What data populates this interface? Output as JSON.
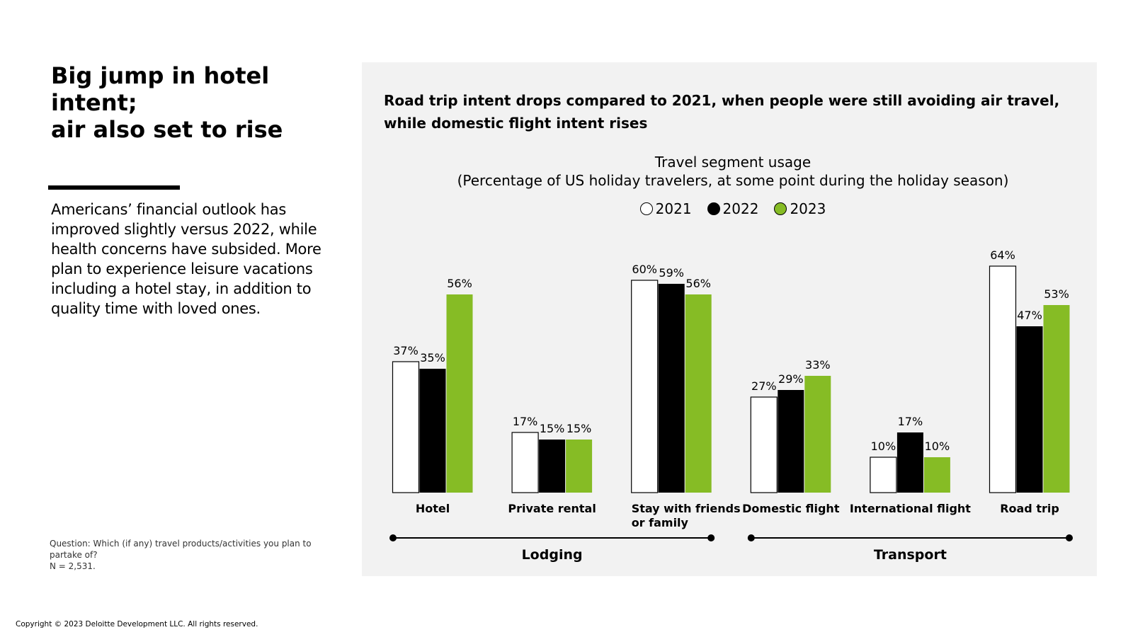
{
  "slide": {
    "title_line1": "Big jump in hotel intent;",
    "title_line2": "air also set to rise",
    "body": "Americans’ financial outlook has improved slightly versus 2022, while health concerns have subsided. More plan to experience leisure vacations including a hotel stay, in addition to quality time with loved ones.",
    "note_question": "Question: Which (if any) travel products/activities you plan to partake of?",
    "note_n": "N = 2,531.",
    "copyright": "Copyright © 2023 Deloitte Development LLC. All rights reserved."
  },
  "panel": {
    "heading_line1": "Road trip intent drops compared to 2021, when people were still avoiding air travel,",
    "heading_line2": "while domestic flight intent rises"
  },
  "colors": {
    "series_2021": "#ffffff",
    "series_2022": "#000000",
    "series_2023": "#86bc25",
    "panel_bg": "#f2f2f2"
  },
  "chart_data": {
    "type": "bar",
    "title": "Travel segment usage",
    "subtitle": "(Percentage of US holiday travelers, at some point during the holiday season)",
    "categories": [
      "Hotel",
      "Private rental",
      "Stay with friends or family",
      "Domestic flight",
      "International flight",
      "Road trip"
    ],
    "category_lines": [
      [
        "Hotel"
      ],
      [
        "Private rental"
      ],
      [
        "Stay with friends",
        "or family"
      ],
      [
        "Domestic flight"
      ],
      [
        "International flight"
      ],
      [
        "Road trip"
      ]
    ],
    "series": [
      {
        "name": "2021",
        "values": [
          37,
          17,
          60,
          27,
          10,
          64
        ],
        "labels": [
          "37%",
          "17%",
          "60%",
          "27%",
          "10%",
          "64%"
        ]
      },
      {
        "name": "2022",
        "values": [
          35,
          15,
          59,
          29,
          17,
          47
        ],
        "labels": [
          "35%",
          "15%",
          "59%",
          "29%",
          "17%",
          "47%"
        ]
      },
      {
        "name": "2023",
        "values": [
          56,
          15,
          56,
          33,
          10,
          53
        ],
        "labels": [
          "56%",
          "15%",
          "56%",
          "33%",
          "10%",
          "53%"
        ]
      }
    ],
    "groups": [
      {
        "label": "Lodging",
        "categories": [
          "Hotel",
          "Private rental",
          "Stay with friends or family"
        ]
      },
      {
        "label": "Transport",
        "categories": [
          "Domestic flight",
          "International flight",
          "Road trip"
        ]
      }
    ],
    "ylim": [
      0,
      70
    ],
    "xlabel": "",
    "ylabel": "",
    "legend": "top-center",
    "grid": false
  }
}
